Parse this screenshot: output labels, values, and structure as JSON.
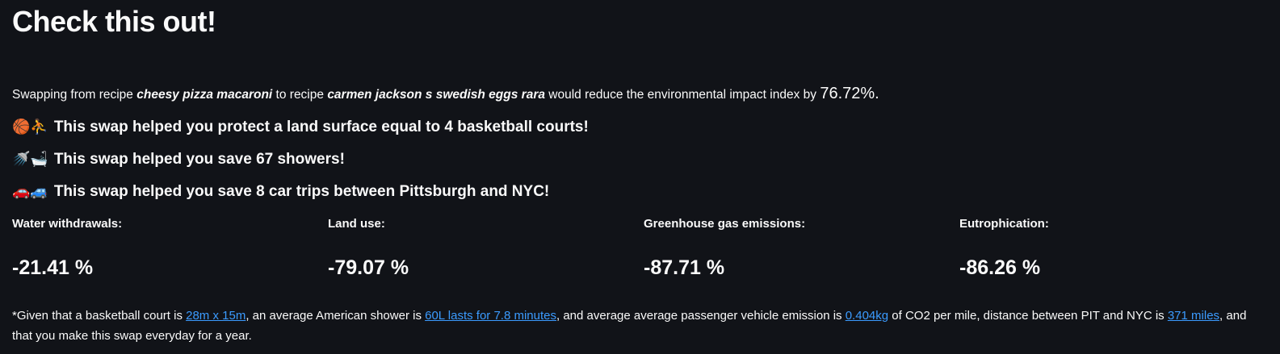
{
  "title": "Check this out!",
  "intro": {
    "prefix": "Swapping from recipe",
    "from_recipe": "cheesy pizza macaroni",
    "middle": "to recipe",
    "to_recipe": "carmen jackson s swedish eggs rara",
    "suffix": "would reduce the environmental impact index by",
    "percent": "76.72%."
  },
  "swaps": [
    {
      "emoji": "🏀⛹",
      "text": "This swap helped you protect a land surface equal to 4 basketball courts!"
    },
    {
      "emoji": "🚿🛁",
      "text": "This swap helped you save 67 showers!"
    },
    {
      "emoji": "🚗🚙",
      "text": "This swap helped you save 8 car trips between Pittsburgh and NYC!"
    }
  ],
  "metrics": [
    {
      "label": "Water withdrawals:",
      "value": "-21.41 %"
    },
    {
      "label": "Land use:",
      "value": "-79.07 %"
    },
    {
      "label": "Greenhouse gas emissions:",
      "value": "-87.71 %"
    },
    {
      "label": "Eutrophication:",
      "value": "-86.26 %"
    }
  ],
  "footnote": {
    "t1": "*Given that a basketball court is",
    "link1": "28m x 15m",
    "t2": ", an average American shower is",
    "link2": "60L lasts for 7.8 minutes",
    "t3": ", and average average passenger vehicle emission is",
    "link3": "0.404kg",
    "t4": "of CO2 per mile, distance between PIT and NYC is",
    "link4": "371 miles",
    "t5": ", and that you make this swap everyday for a year."
  },
  "colors": {
    "background": "#111318",
    "text": "#fafafa",
    "link": "#3b9bff"
  }
}
